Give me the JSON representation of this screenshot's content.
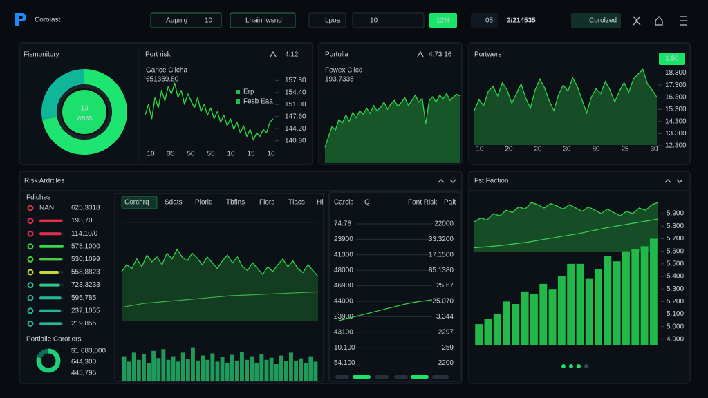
{
  "header": {
    "brand": "Corolast",
    "filters": [
      "Aupnig",
      "10",
      "Lhain iwsnd"
    ],
    "search": [
      "Lpoa",
      "10"
    ],
    "badge": "12%",
    "counter_label": "05",
    "counter": "2/214535",
    "account": "Corolzed"
  },
  "monitor": {
    "title": "Fismonitory",
    "center": "13",
    "caption": "wass",
    "segments": [
      {
        "value": 72,
        "color": "#1ee56f"
      },
      {
        "value": 28,
        "color": "#10b69a"
      }
    ]
  },
  "port_risk": {
    "title": "Port risk",
    "meta": "4:12",
    "label": "Garice Clicha",
    "amount": "€51359.80",
    "legend": [
      {
        "name": "Erp",
        "color": "#20c050"
      },
      {
        "name": "Fesb Eaa",
        "color": "#20c050"
      }
    ],
    "chart": {
      "type": "line",
      "color": "#2bd63e",
      "values": [
        148,
        151,
        147,
        153,
        150,
        155,
        152,
        156,
        154,
        157,
        153,
        155,
        151,
        154,
        152,
        150,
        153,
        149,
        151,
        148,
        150,
        147,
        149,
        146,
        148,
        145,
        147,
        144,
        146,
        143,
        145,
        142,
        144,
        141,
        143,
        142,
        144,
        143,
        146,
        147
      ],
      "ylim": [
        138,
        160
      ],
      "yticks": [
        {
          "value": 157.8,
          "label": "157.80"
        },
        {
          "value": 154.4,
          "label": "154.40"
        },
        {
          "value": 151,
          "label": "151.00"
        },
        {
          "value": 147.6,
          "label": "147.60"
        },
        {
          "value": 144.2,
          "label": "144.20"
        },
        {
          "value": 140.8,
          "label": "140.80"
        }
      ],
      "categories": [
        "10",
        "35",
        "50",
        "55",
        "10",
        "15",
        "16"
      ]
    }
  },
  "portfolio": {
    "title": "Portolia",
    "meta": "4:73 16",
    "label": "Fewex Clicd",
    "amount": "193.7335",
    "chart": {
      "type": "area",
      "color": "#2fd64a",
      "values": [
        18,
        30,
        42,
        38,
        50,
        46,
        55,
        48,
        58,
        52,
        60,
        56,
        63,
        57,
        66,
        60,
        64,
        70,
        62,
        68,
        72,
        65,
        70,
        75,
        66,
        72,
        78,
        70,
        74,
        45,
        72,
        76,
        70,
        78,
        74,
        80,
        72,
        76,
        79,
        77
      ],
      "ylim": [
        0,
        100
      ]
    }
  },
  "partners": {
    "title": "Portwers",
    "button": "1:50",
    "chart": {
      "type": "area",
      "color": "#2fd64a",
      "values": [
        15.2,
        16.1,
        15.6,
        16.8,
        17.2,
        16.4,
        17.5,
        16.9,
        15.8,
        16.6,
        17.4,
        16.2,
        15.4,
        16.9,
        17.8,
        17.1,
        16.0,
        15.2,
        16.5,
        17.3,
        16.8,
        17.9,
        17.2,
        16.1,
        15.0,
        16.3,
        17.0,
        16.6,
        17.6,
        16.9,
        15.9,
        16.8,
        17.5,
        16.7,
        17.8,
        18.2,
        18.6,
        17.4,
        16.9,
        16.3
      ],
      "ylim": [
        11.9,
        18.9
      ],
      "yticks": [
        {
          "value": 18.3,
          "label": "18.300"
        },
        {
          "value": 17.3,
          "label": "17.300"
        },
        {
          "value": 16.3,
          "label": "16.300"
        },
        {
          "value": 15.3,
          "label": "15.300"
        },
        {
          "value": 14.3,
          "label": "14.300"
        },
        {
          "value": 13.3,
          "label": "13.300"
        },
        {
          "value": 12.3,
          "label": "12.300"
        }
      ],
      "categories": [
        "10",
        "20",
        "20",
        "30",
        "80",
        "25",
        "30"
      ]
    }
  },
  "risk": {
    "title": "Risk Ardrtiles",
    "list": {
      "title": "Fdiches",
      "rows": [
        {
          "name": "NAN",
          "value": "625,3318",
          "color": "#e0304a"
        },
        {
          "value": "193,70",
          "level": 95,
          "color": "#e0304a"
        },
        {
          "value": "114,10/0",
          "level": 90,
          "color": "#e0304a"
        },
        {
          "value": "575,1000",
          "level": 100,
          "color": "#37d84a"
        },
        {
          "value": "530,1099",
          "level": 95,
          "color": "#4ad040"
        },
        {
          "value": "558,8823",
          "level": 80,
          "color": "#c8d832"
        },
        {
          "value": "723,3233",
          "level": 85,
          "color": "#2ec88a"
        },
        {
          "value": "595,785",
          "level": 90,
          "color": "#26b896"
        },
        {
          "value": "237,1055",
          "level": 88,
          "color": "#26b896"
        },
        {
          "value": "219,855",
          "level": 92,
          "color": "#26b896"
        }
      ]
    },
    "holdings": {
      "title": "Portlaile Corotiors",
      "segments": [
        {
          "value": 80,
          "color": "#1fd07a"
        },
        {
          "value": 20,
          "color": "#0e6d5a"
        }
      ],
      "values": [
        "$1,683,000",
        "644,300",
        "445,795"
      ]
    },
    "tabs": [
      "Corchrq",
      "Sdats",
      "Plorid",
      "Tbfins",
      "Fiors",
      "Tlacs",
      "Hl"
    ],
    "active_tab": 0,
    "chart": {
      "type": "area",
      "color": "#2fd64a",
      "trend_color": "#3fb04a",
      "values": [
        55,
        62,
        58,
        68,
        60,
        72,
        65,
        70,
        62,
        74,
        68,
        78,
        70,
        66,
        74,
        69,
        62,
        70,
        64,
        58,
        66,
        72,
        64,
        70,
        60,
        56,
        64,
        58,
        52,
        60,
        55,
        62,
        68,
        60,
        66,
        58,
        54,
        62,
        56,
        50
      ],
      "trend": [
        18,
        22,
        24,
        26,
        28,
        30,
        31,
        32,
        33,
        34
      ],
      "ylim": [
        0,
        100
      ],
      "volume": {
        "values": [
          70,
          55,
          80,
          60,
          75,
          50,
          85,
          65,
          90,
          60,
          70,
          55,
          80,
          62,
          95,
          58,
          72,
          60,
          78,
          55,
          68,
          50,
          74,
          58,
          82,
          60,
          70,
          52,
          76,
          60,
          66,
          48,
          72,
          56,
          80,
          58,
          64,
          50,
          70,
          55
        ],
        "ylim": [
          0,
          100
        ],
        "color": "#1f9a5a"
      }
    },
    "table": {
      "columns": [
        "Carcis",
        "Q",
        "Font Risk",
        "Palt"
      ],
      "rows": [
        [
          "74.78",
          "22000"
        ],
        [
          "23900",
          "33.3200"
        ],
        [
          "41300",
          "17.1500"
        ],
        [
          "48000",
          "85.1380"
        ],
        [
          "46900",
          "25.67"
        ],
        [
          "44000",
          "25.070"
        ],
        [
          "23900",
          "3.344"
        ],
        [
          "43100",
          "2297"
        ],
        [
          "10.100",
          "259"
        ],
        [
          "54.100",
          "2200"
        ]
      ],
      "trend": {
        "values": [
          10,
          18,
          26,
          34,
          42,
          50,
          56,
          60
        ],
        "ylim": [
          0,
          100
        ],
        "color": "#2fd64a"
      }
    }
  },
  "faction": {
    "title": "Fst Faction",
    "area": {
      "values": [
        55,
        62,
        58,
        70,
        66,
        76,
        72,
        82,
        78,
        90,
        86,
        80,
        88,
        84,
        78,
        86,
        80,
        74,
        82,
        76,
        70,
        78,
        72,
        66,
        74,
        70,
        80,
        76,
        86,
        90
      ],
      "trend": [
        8,
        12,
        18,
        26,
        34,
        44,
        52,
        60
      ],
      "ylim": [
        0,
        100
      ],
      "color": "#2fd64a"
    },
    "bars": {
      "type": "bar",
      "color": "#22b84a",
      "values": [
        5.02,
        5.06,
        5.1,
        5.2,
        5.18,
        5.28,
        5.26,
        5.34,
        5.3,
        5.4,
        5.5,
        5.5,
        5.38,
        5.46,
        5.56,
        5.52,
        5.6,
        5.62,
        5.64,
        5.7
      ],
      "ylim": [
        4.85,
        5.95
      ],
      "yticks": [
        {
          "value": 5.9,
          "label": "5.900"
        },
        {
          "value": 5.8,
          "label": "5.800"
        },
        {
          "value": 5.7,
          "label": "5.700"
        },
        {
          "value": 5.6,
          "label": "5.600"
        },
        {
          "value": 5.5,
          "label": "5.500"
        },
        {
          "value": 5.4,
          "label": "5.400"
        },
        {
          "value": 5.3,
          "label": "5.300"
        },
        {
          "value": 5.2,
          "label": "5.200"
        },
        {
          "value": 5.1,
          "label": "5.100"
        },
        {
          "value": 5,
          "label": "5.000"
        },
        {
          "value": 4.9,
          "label": "4.900"
        }
      ]
    }
  }
}
